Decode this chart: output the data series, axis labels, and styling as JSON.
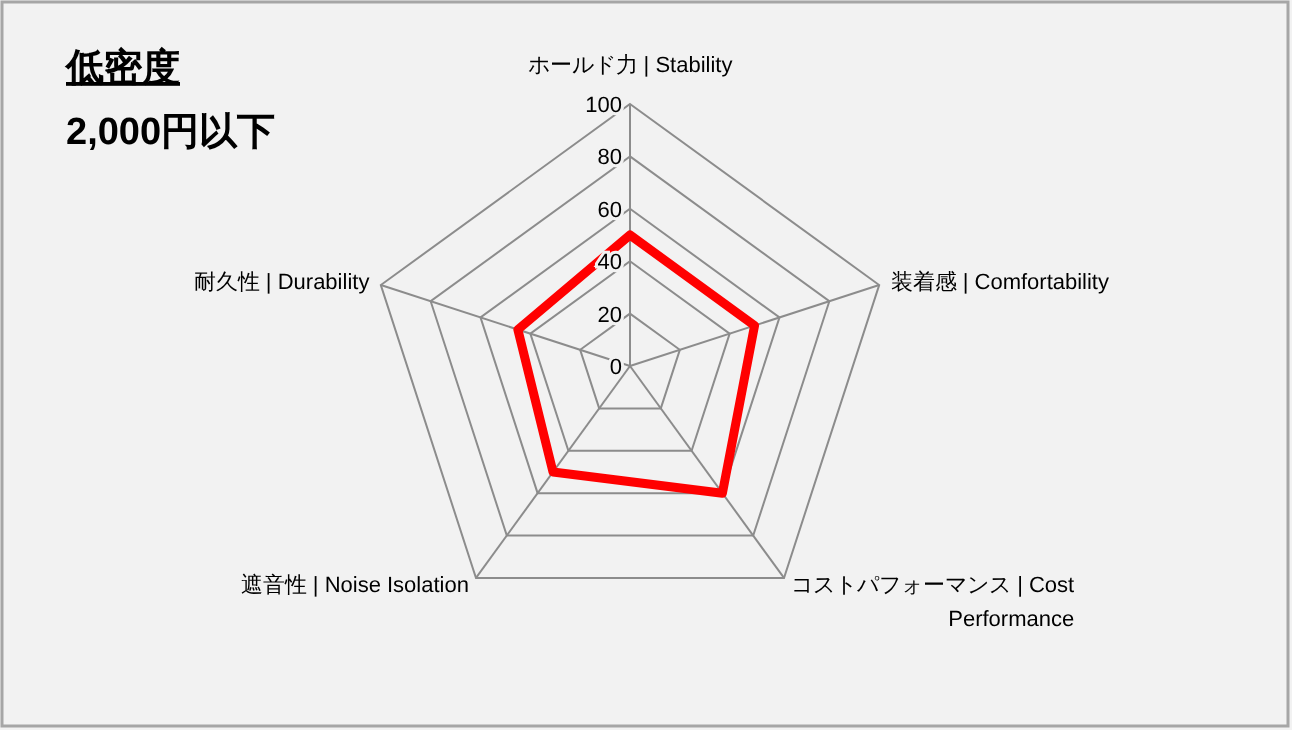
{
  "chart_data": {
    "type": "radar",
    "title": "低密度",
    "subtitle": "2,000円以下",
    "categories": [
      "ホールド力 | Stability",
      "装着感 | Comfortability",
      "コストパフォーマンス | Cost Performance",
      "遮音性 | Noise Isolation",
      "耐久性 | Durability"
    ],
    "series": [
      {
        "color": "#ff0000",
        "values": [
          50,
          50,
          60,
          50,
          45
        ]
      }
    ],
    "ylim": [
      0,
      100
    ],
    "yticks": [
      0,
      20,
      40,
      60,
      80,
      100
    ],
    "grid": true,
    "line_style": "solid",
    "marker": "none"
  }
}
